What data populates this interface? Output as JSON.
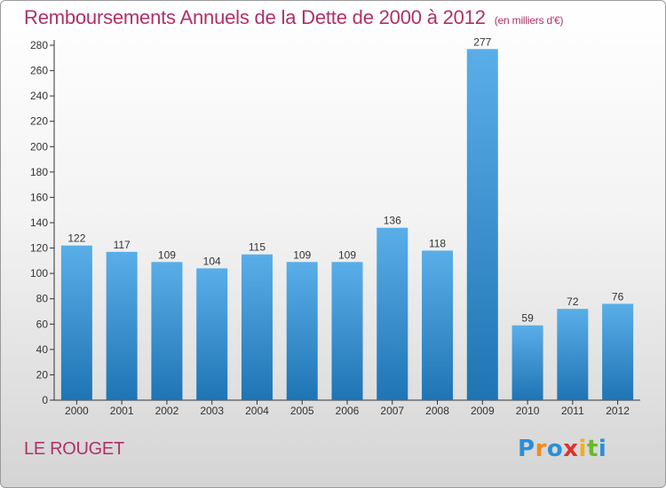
{
  "header": {
    "title": "Remboursements Annuels de la Dette de 2000 à 2012",
    "unit": "(en milliers d'€)"
  },
  "footer": {
    "city": "LE ROUGET",
    "brand_letters": [
      "P",
      "r",
      "o",
      "x",
      "i",
      "t",
      "i"
    ]
  },
  "colors": {
    "title": "#b0306a",
    "bar_top": "#5aaee8",
    "bar_bottom": "#1f74b4"
  },
  "chart_data": {
    "type": "bar",
    "title": "Remboursements Annuels de la Dette de 2000 à 2012",
    "categories": [
      "2000",
      "2001",
      "2002",
      "2003",
      "2004",
      "2005",
      "2006",
      "2007",
      "2008",
      "2009",
      "2010",
      "2011",
      "2012"
    ],
    "values": [
      122,
      117,
      109,
      104,
      115,
      109,
      109,
      136,
      118,
      277,
      59,
      72,
      76
    ],
    "ylim": [
      0,
      280
    ],
    "yticks": [
      0,
      20,
      40,
      60,
      80,
      100,
      120,
      140,
      160,
      180,
      200,
      220,
      240,
      260,
      280
    ],
    "grid": false,
    "data_labels": true
  }
}
